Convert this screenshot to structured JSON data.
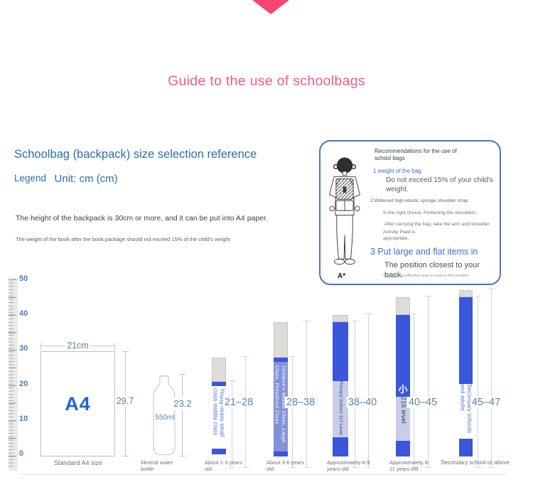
{
  "colors": {
    "accent_pink": "#f8456f",
    "title_pink": "#ef5c88",
    "heading_blue": "#2b6cb4",
    "bar_blue": "#3a57db",
    "bar_periwinkle": "#8292d6",
    "band_light": "#c8cee9",
    "cap_gray": "#dcdcd9"
  },
  "header": {
    "title": "Guide to the use of schoolbags"
  },
  "intro": {
    "heading": "Schoolbag (backpack) size selection reference",
    "legend_label": "Legend",
    "unit_label": "Unit: cm (cm)",
    "line1": "The height of the backpack is 30cm or more, and it can be put into A4 paper.",
    "line2": "The weight of the book after the book package should not exceed 15% of the child's weight"
  },
  "panel": {
    "title": "Recommendations for the use of school bags",
    "figure_label": "A*",
    "items": [
      {
        "title": "1 weight of the bag",
        "body": "Do not exceed 15% of your child's weight."
      },
      {
        "title": "2 Widened high elastic sponge shoulder strap",
        "line1": "Is the right choice. Protecting the shoulders,",
        "line2": "After carrying the bag, take the arm and shoulder",
        "line3": "Activity Plaid is appropriate,"
      },
      {
        "title": "3 Put large and flat items in",
        "body": "The position closest to your back.",
        "note": "It is also an effective way to reduce the burden!"
      }
    ]
  },
  "chart_data": {
    "type": "bar",
    "title": "Schoolbag (backpack) size selection reference",
    "unit": "cm",
    "ylim": [
      0,
      50
    ],
    "axis_ticks": [
      "50",
      "40",
      "30",
      "20",
      "10",
      "0"
    ],
    "reference_objects": [
      {
        "name": "a4-paper",
        "label": "A4",
        "width_cm": 21,
        "height_cm": 29.7,
        "width_label": "21cm",
        "height_label": "29.7",
        "caption": "Standard A4 size"
      },
      {
        "name": "water-bottle",
        "volume_label": "550ml",
        "height_cm": 23.2,
        "height_label": "23.2",
        "caption": "Mineral water bottle"
      }
    ],
    "items": [
      {
        "label": "Young heavy small class middle class",
        "min": 21,
        "max": 28,
        "range_label": "21–28",
        "caption": "About 1-3 years old"
      },
      {
        "label": "Children's Middle Class, Large Class, Preschool Class",
        "min": 28,
        "max": 38,
        "range_label": "28–38",
        "caption": "About 3-6 years old"
      },
      {
        "label": "Primary School 112 Level",
        "min": 38,
        "max": 40,
        "range_label": "38–40",
        "caption": "Approximately 6-9 years old"
      },
      {
        "prefix": "小",
        "label": "216 level",
        "min": 40,
        "max": 45,
        "range_label": "40–45",
        "caption": "Approximately 8-11 years old"
      },
      {
        "label": "Secondary schools and adults",
        "min": 45,
        "max": 47,
        "range_label": "45–47",
        "caption": "Secondary school or above"
      }
    ]
  }
}
